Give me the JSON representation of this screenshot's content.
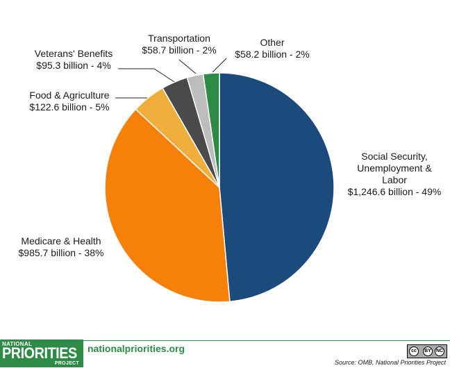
{
  "chart_data": {
    "type": "pie",
    "title": "",
    "unit": "billion",
    "start_angle_deg": 0,
    "direction": "clockwise",
    "slices": [
      {
        "label": "Social Security, Unemployment & Labor",
        "label_lines": [
          "Social Security,",
          "Unemployment &",
          "Labor",
          "$1,246.6 billion - 49%"
        ],
        "value": 1246.6,
        "percent": 49,
        "color": "#1c4a7c"
      },
      {
        "label": "Medicare & Health",
        "label_lines": [
          "Medicare & Health",
          "$985.7 billion - 38%"
        ],
        "value": 985.7,
        "percent": 38,
        "color": "#f5800a"
      },
      {
        "label": "Food & Agriculture",
        "label_lines": [
          "Food & Agriculture",
          "$122.6 billion - 5%"
        ],
        "value": 122.6,
        "percent": 5,
        "color": "#f0ae3b"
      },
      {
        "label": "Veterans' Benefits",
        "label_lines": [
          "Veterans' Benefits",
          "$95.3 billion - 4%"
        ],
        "value": 95.3,
        "percent": 4,
        "color": "#4a4a4a"
      },
      {
        "label": "Transportation",
        "label_lines": [
          "Transportation",
          "$58.7 billion - 2%"
        ],
        "value": 58.7,
        "percent": 2,
        "color": "#bdbdbd"
      },
      {
        "label": "Other",
        "label_lines": [
          "Other",
          "$58.2 billion - 2%"
        ],
        "value": 58.2,
        "percent": 2,
        "color": "#2e8b45"
      }
    ]
  },
  "footer": {
    "logo": {
      "line1": "NATIONAL",
      "line2": "PRIORITIES",
      "line3": "PROJECT"
    },
    "site": "nationalpriorities.org",
    "license": {
      "badge": "cc",
      "by": "BY",
      "nc": "NC"
    },
    "source": "Source: OMB, National Priorities Project"
  },
  "colors": {
    "brand_green": "#2e8b45",
    "slice_border": "#ffffff"
  }
}
